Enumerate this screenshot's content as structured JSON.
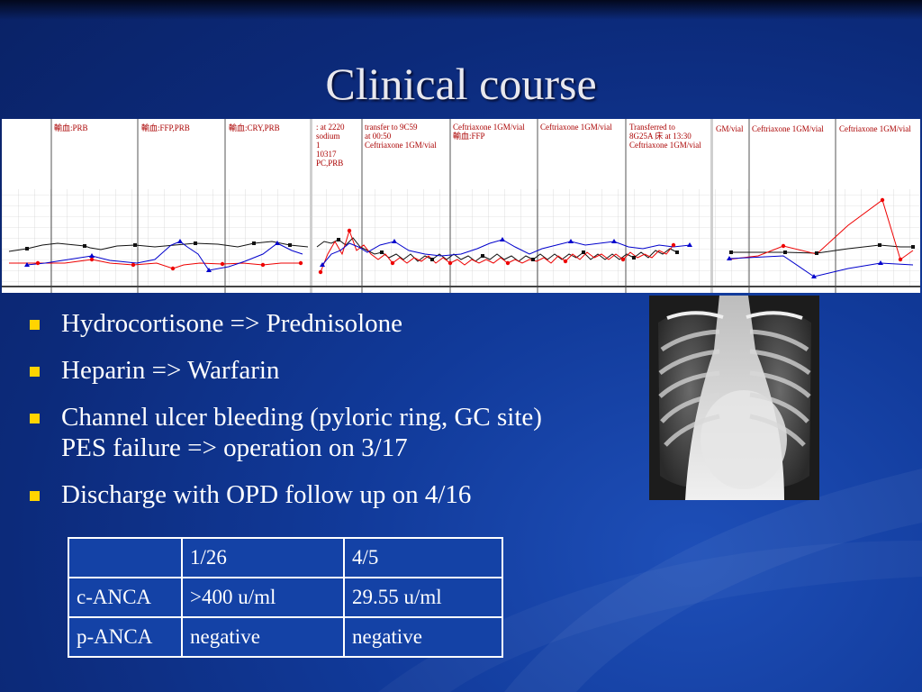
{
  "slide": {
    "title": "Clinical course",
    "accent_color": "#ffd400",
    "background_color": "#113a9a"
  },
  "chart_strip": {
    "panel1_annotations": [
      "輸血:PRB",
      "輸血:FFP,PRB",
      "輸血:CRY,PRB"
    ],
    "panel2_annotations": [
      {
        "lines": [
          ": at 2220",
          "sodium",
          "1",
          "10317",
          "PC,PRB"
        ]
      },
      {
        "lines": [
          "transfer to 9C59",
          "at 00:50",
          "Ceftriaxone 1GM/vial"
        ]
      },
      {
        "lines": [
          "Ceftriaxone 1GM/vial",
          "輸血:FFP"
        ]
      },
      {
        "lines": [
          "Ceftriaxone 1GM/vial"
        ]
      },
      {
        "lines": [
          "Transferred to",
          "8G25A 床 at 13:30",
          "Ceftriaxone 1GM/vial"
        ]
      }
    ],
    "panel3_annotations": [
      "GM/vial",
      "Ceftriaxone 1GM/vial",
      "Ceftriaxone 1GM/vial"
    ]
  },
  "bullets": [
    {
      "text": "Hydrocortisone => Prednisolone"
    },
    {
      "text": "Heparin => Warfarin"
    },
    {
      "text": "Channel ulcer bleeding (pyloric ring, GC site)",
      "text2": "PES failure => operation on 3/17"
    },
    {
      "text": "Discharge with OPD follow up on 4/16"
    }
  ],
  "xray": {
    "icon": "chest-xray-icon"
  },
  "anca_table": {
    "header": [
      "",
      "1/26",
      "4/5"
    ],
    "rows": [
      {
        "label": "c-ANCA",
        "values": [
          ">400 u/ml",
          "29.55 u/ml"
        ]
      },
      {
        "label": "p-ANCA",
        "values": [
          "negative",
          "negative"
        ]
      }
    ]
  }
}
